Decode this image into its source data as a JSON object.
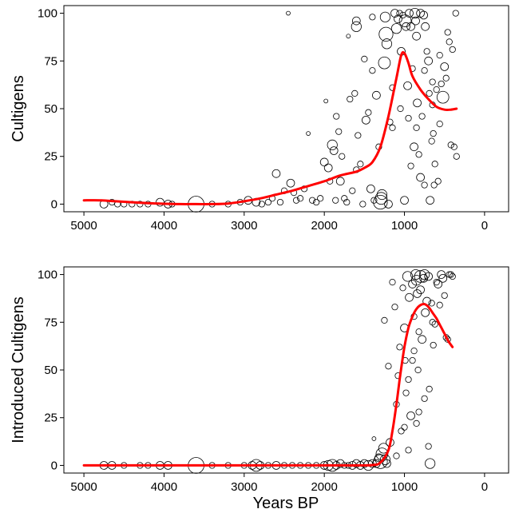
{
  "chart_data": [
    {
      "type": "scatter",
      "title": "",
      "xlabel": "",
      "ylabel": "Cultigens",
      "xlim": [
        5250,
        -300
      ],
      "ylim": [
        -4,
        104
      ],
      "x_reversed": true,
      "x_ticks": [
        5000,
        4000,
        3000,
        2000,
        1000,
        0
      ],
      "y_ticks": [
        0,
        25,
        50,
        75,
        100
      ],
      "grid": false,
      "legend": "none",
      "colors": {
        "points": "#000000",
        "trend": "#ff0000"
      },
      "points": [
        [
          4750,
          0,
          3
        ],
        [
          4650,
          1,
          2
        ],
        [
          4580,
          0,
          2
        ],
        [
          4500,
          0,
          2
        ],
        [
          4400,
          0,
          2
        ],
        [
          4300,
          0,
          2
        ],
        [
          4200,
          0,
          2
        ],
        [
          4050,
          1,
          3
        ],
        [
          3950,
          0,
          3
        ],
        [
          3900,
          0,
          2
        ],
        [
          3600,
          0,
          7
        ],
        [
          3400,
          0,
          2
        ],
        [
          3200,
          0,
          2
        ],
        [
          3050,
          1,
          2
        ],
        [
          2950,
          2,
          3
        ],
        [
          2850,
          1,
          3
        ],
        [
          2780,
          0,
          2
        ],
        [
          2700,
          1,
          2
        ],
        [
          2650,
          3,
          2
        ],
        [
          2600,
          16,
          3
        ],
        [
          2550,
          1,
          2
        ],
        [
          2500,
          7,
          2
        ],
        [
          2450,
          100,
          1
        ],
        [
          2420,
          11,
          3
        ],
        [
          2380,
          6,
          2
        ],
        [
          2350,
          2,
          2
        ],
        [
          2300,
          3,
          2
        ],
        [
          2250,
          8,
          2
        ],
        [
          2200,
          37,
          1
        ],
        [
          2150,
          2,
          2
        ],
        [
          2100,
          1,
          2
        ],
        [
          2050,
          3,
          2
        ],
        [
          2000,
          22,
          3
        ],
        [
          1980,
          54,
          1
        ],
        [
          1950,
          19,
          3
        ],
        [
          1930,
          12,
          2
        ],
        [
          1900,
          31,
          4
        ],
        [
          1880,
          28,
          3
        ],
        [
          1860,
          2,
          2
        ],
        [
          1850,
          46,
          2
        ],
        [
          1820,
          38,
          2
        ],
        [
          1800,
          12,
          3
        ],
        [
          1780,
          25,
          2
        ],
        [
          1750,
          3,
          2
        ],
        [
          1720,
          1,
          2
        ],
        [
          1700,
          88,
          1
        ],
        [
          1680,
          55,
          2
        ],
        [
          1650,
          7,
          2
        ],
        [
          1620,
          58,
          2
        ],
        [
          1600,
          93,
          4
        ],
        [
          1600,
          96,
          3
        ],
        [
          1580,
          36,
          2
        ],
        [
          1550,
          21,
          2
        ],
        [
          1520,
          0,
          2
        ],
        [
          1500,
          76,
          2
        ],
        [
          1480,
          44,
          3
        ],
        [
          1450,
          48,
          2
        ],
        [
          1420,
          8,
          3
        ],
        [
          1400,
          70,
          2
        ],
        [
          1380,
          2,
          2
        ],
        [
          1350,
          57,
          3
        ],
        [
          1320,
          30,
          2
        ],
        [
          1300,
          1,
          6
        ],
        [
          1290,
          3,
          5
        ],
        [
          1280,
          5,
          4
        ],
        [
          1250,
          74,
          5
        ],
        [
          1240,
          98,
          4
        ],
        [
          1230,
          89,
          6
        ],
        [
          1220,
          84,
          4
        ],
        [
          1200,
          0,
          3
        ],
        [
          1180,
          43,
          2
        ],
        [
          1150,
          61,
          2
        ],
        [
          1120,
          100,
          3
        ],
        [
          1100,
          92,
          4
        ],
        [
          1080,
          97,
          3
        ],
        [
          1060,
          100,
          2
        ],
        [
          1040,
          80,
          3
        ],
        [
          1020,
          99,
          2
        ],
        [
          1000,
          2,
          3
        ],
        [
          990,
          96,
          5
        ],
        [
          980,
          93,
          3
        ],
        [
          960,
          62,
          3
        ],
        [
          940,
          100,
          3
        ],
        [
          920,
          93,
          3
        ],
        [
          900,
          71,
          2
        ],
        [
          880,
          30,
          3
        ],
        [
          870,
          100,
          4
        ],
        [
          860,
          96,
          3
        ],
        [
          850,
          88,
          3
        ],
        [
          840,
          53,
          3
        ],
        [
          820,
          26,
          2
        ],
        [
          800,
          100,
          3
        ],
        [
          800,
          14,
          3
        ],
        [
          780,
          46,
          2
        ],
        [
          760,
          99,
          3
        ],
        [
          750,
          10,
          2
        ],
        [
          740,
          93,
          3
        ],
        [
          720,
          80,
          2
        ],
        [
          700,
          75,
          3
        ],
        [
          690,
          58,
          2
        ],
        [
          680,
          2,
          3
        ],
        [
          660,
          33,
          2
        ],
        [
          650,
          64,
          2
        ],
        [
          640,
          37,
          2
        ],
        [
          630,
          10,
          2
        ],
        [
          620,
          21,
          2
        ],
        [
          600,
          60,
          2
        ],
        [
          580,
          12,
          2
        ],
        [
          560,
          42,
          2
        ],
        [
          540,
          63,
          2
        ],
        [
          520,
          56,
          5
        ],
        [
          500,
          72,
          3
        ],
        [
          480,
          66,
          2
        ],
        [
          460,
          90,
          2
        ],
        [
          440,
          85,
          2
        ],
        [
          420,
          31,
          2
        ],
        [
          400,
          81,
          2
        ],
        [
          380,
          30,
          2
        ],
        [
          360,
          100,
          2
        ],
        [
          350,
          25,
          2
        ],
        [
          1400,
          98,
          2
        ],
        [
          1600,
          18,
          2
        ],
        [
          1150,
          40,
          2
        ],
        [
          1050,
          50,
          2
        ],
        [
          950,
          45,
          2
        ],
        [
          850,
          40,
          2
        ],
        [
          750,
          70,
          2
        ],
        [
          650,
          52,
          2
        ],
        [
          560,
          78,
          2
        ],
        [
          920,
          20,
          2
        ]
      ],
      "trend": [
        [
          5000,
          2
        ],
        [
          4800,
          2
        ],
        [
          4600,
          1.5
        ],
        [
          4400,
          1
        ],
        [
          4200,
          0.5
        ],
        [
          4000,
          0.2
        ],
        [
          3800,
          0
        ],
        [
          3600,
          0
        ],
        [
          3400,
          0
        ],
        [
          3200,
          0.3
        ],
        [
          3000,
          1.5
        ],
        [
          2800,
          3
        ],
        [
          2600,
          5
        ],
        [
          2400,
          7
        ],
        [
          2200,
          9.5
        ],
        [
          2000,
          12
        ],
        [
          1800,
          15
        ],
        [
          1600,
          17
        ],
        [
          1500,
          19
        ],
        [
          1400,
          22
        ],
        [
          1300,
          30
        ],
        [
          1200,
          46
        ],
        [
          1100,
          66
        ],
        [
          1040,
          78
        ],
        [
          1000,
          79
        ],
        [
          950,
          74
        ],
        [
          900,
          67
        ],
        [
          800,
          60
        ],
        [
          700,
          55
        ],
        [
          600,
          51
        ],
        [
          500,
          49.5
        ],
        [
          420,
          49.5
        ],
        [
          350,
          50
        ]
      ]
    },
    {
      "type": "scatter",
      "title": "",
      "xlabel": "Years BP",
      "ylabel": "Introduced Cultigens",
      "xlim": [
        5250,
        -300
      ],
      "ylim": [
        -4,
        104
      ],
      "x_reversed": true,
      "x_ticks": [
        5000,
        4000,
        3000,
        2000,
        1000,
        0
      ],
      "y_ticks": [
        0,
        25,
        50,
        75,
        100
      ],
      "grid": false,
      "legend": "none",
      "colors": {
        "points": "#000000",
        "trend": "#ff0000"
      },
      "points": [
        [
          4750,
          0,
          3
        ],
        [
          4650,
          0,
          3
        ],
        [
          4500,
          0,
          2
        ],
        [
          4300,
          0,
          2
        ],
        [
          4200,
          0,
          2
        ],
        [
          4050,
          0,
          3
        ],
        [
          3950,
          0,
          3
        ],
        [
          3600,
          0,
          7
        ],
        [
          3400,
          0,
          2
        ],
        [
          3200,
          0,
          2
        ],
        [
          3000,
          0,
          2
        ],
        [
          2900,
          0,
          3
        ],
        [
          2850,
          0,
          5
        ],
        [
          2800,
          0,
          3
        ],
        [
          2700,
          0,
          2
        ],
        [
          2600,
          0,
          3
        ],
        [
          2500,
          0,
          2
        ],
        [
          2400,
          0,
          2
        ],
        [
          2300,
          0,
          2
        ],
        [
          2200,
          0,
          2
        ],
        [
          2100,
          0,
          2
        ],
        [
          2000,
          0,
          3
        ],
        [
          1950,
          0,
          4
        ],
        [
          1900,
          0,
          5
        ],
        [
          1850,
          0,
          3
        ],
        [
          1800,
          1,
          3
        ],
        [
          1750,
          0,
          2
        ],
        [
          1700,
          0,
          2
        ],
        [
          1650,
          0,
          3
        ],
        [
          1600,
          1,
          3
        ],
        [
          1550,
          0,
          3
        ],
        [
          1500,
          1,
          3
        ],
        [
          1450,
          0,
          4
        ],
        [
          1400,
          1,
          3
        ],
        [
          1380,
          14,
          1
        ],
        [
          1350,
          1,
          3
        ],
        [
          1320,
          4,
          3
        ],
        [
          1300,
          2,
          6
        ],
        [
          1280,
          6,
          5
        ],
        [
          1260,
          9,
          4
        ],
        [
          1240,
          3,
          4
        ],
        [
          1220,
          1,
          3
        ],
        [
          1250,
          76,
          2
        ],
        [
          1200,
          52,
          2
        ],
        [
          1180,
          12,
          3
        ],
        [
          1150,
          96,
          2
        ],
        [
          1120,
          83,
          2
        ],
        [
          1100,
          32,
          2
        ],
        [
          1080,
          47,
          2
        ],
        [
          1060,
          62,
          2
        ],
        [
          1040,
          18,
          2
        ],
        [
          1020,
          93,
          2
        ],
        [
          1000,
          72,
          3
        ],
        [
          990,
          55,
          2
        ],
        [
          980,
          38,
          2
        ],
        [
          960,
          99,
          4
        ],
        [
          940,
          88,
          3
        ],
        [
          920,
          26,
          3
        ],
        [
          900,
          95,
          3
        ],
        [
          880,
          78,
          2
        ],
        [
          860,
          100,
          4
        ],
        [
          850,
          97,
          4
        ],
        [
          840,
          90,
          3
        ],
        [
          830,
          50,
          2
        ],
        [
          820,
          28,
          2
        ],
        [
          800,
          99,
          5
        ],
        [
          800,
          92,
          3
        ],
        [
          780,
          66,
          3
        ],
        [
          760,
          98,
          3
        ],
        [
          750,
          100,
          4
        ],
        [
          740,
          80,
          3
        ],
        [
          720,
          86,
          3
        ],
        [
          700,
          99,
          3
        ],
        [
          690,
          40,
          2
        ],
        [
          680,
          1,
          4
        ],
        [
          660,
          85,
          2
        ],
        [
          650,
          75,
          2
        ],
        [
          640,
          63,
          2
        ],
        [
          620,
          74,
          2
        ],
        [
          600,
          96,
          2
        ],
        [
          580,
          95,
          3
        ],
        [
          560,
          84,
          2
        ],
        [
          540,
          100,
          3
        ],
        [
          520,
          98,
          3
        ],
        [
          500,
          89,
          2
        ],
        [
          480,
          67,
          2
        ],
        [
          460,
          66,
          2
        ],
        [
          440,
          100,
          2
        ],
        [
          420,
          100,
          2
        ],
        [
          400,
          99,
          2
        ],
        [
          1000,
          20,
          2
        ],
        [
          950,
          45,
          2
        ],
        [
          900,
          55,
          2
        ],
        [
          850,
          22,
          2
        ],
        [
          750,
          35,
          2
        ],
        [
          700,
          10,
          2
        ],
        [
          1100,
          5,
          2
        ],
        [
          950,
          8,
          2
        ],
        [
          880,
          60,
          2
        ],
        [
          820,
          70,
          2
        ]
      ],
      "trend": [
        [
          5000,
          0
        ],
        [
          4500,
          0
        ],
        [
          4000,
          0
        ],
        [
          3500,
          0
        ],
        [
          3000,
          0
        ],
        [
          2500,
          0
        ],
        [
          2000,
          0
        ],
        [
          1800,
          0
        ],
        [
          1600,
          0
        ],
        [
          1400,
          0.2
        ],
        [
          1300,
          1.5
        ],
        [
          1200,
          8
        ],
        [
          1150,
          18
        ],
        [
          1100,
          32
        ],
        [
          1050,
          48
        ],
        [
          1000,
          62
        ],
        [
          950,
          72
        ],
        [
          900,
          78
        ],
        [
          850,
          82
        ],
        [
          800,
          84
        ],
        [
          750,
          84.5
        ],
        [
          700,
          83
        ],
        [
          650,
          80
        ],
        [
          600,
          77
        ],
        [
          550,
          73
        ],
        [
          500,
          69
        ],
        [
          450,
          65
        ],
        [
          400,
          62
        ]
      ]
    }
  ]
}
